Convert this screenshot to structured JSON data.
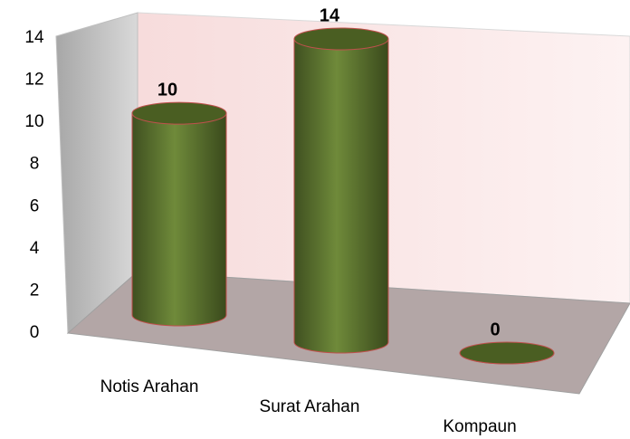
{
  "chart_data": {
    "type": "bar",
    "categories": [
      "Notis Arahan",
      "Surat Arahan",
      "Kompaun"
    ],
    "values": [
      10,
      14,
      0
    ],
    "color": "#5b7030",
    "ylim": [
      0,
      14
    ],
    "yticks": [
      0,
      2,
      4,
      6,
      8,
      10,
      12,
      14
    ]
  }
}
